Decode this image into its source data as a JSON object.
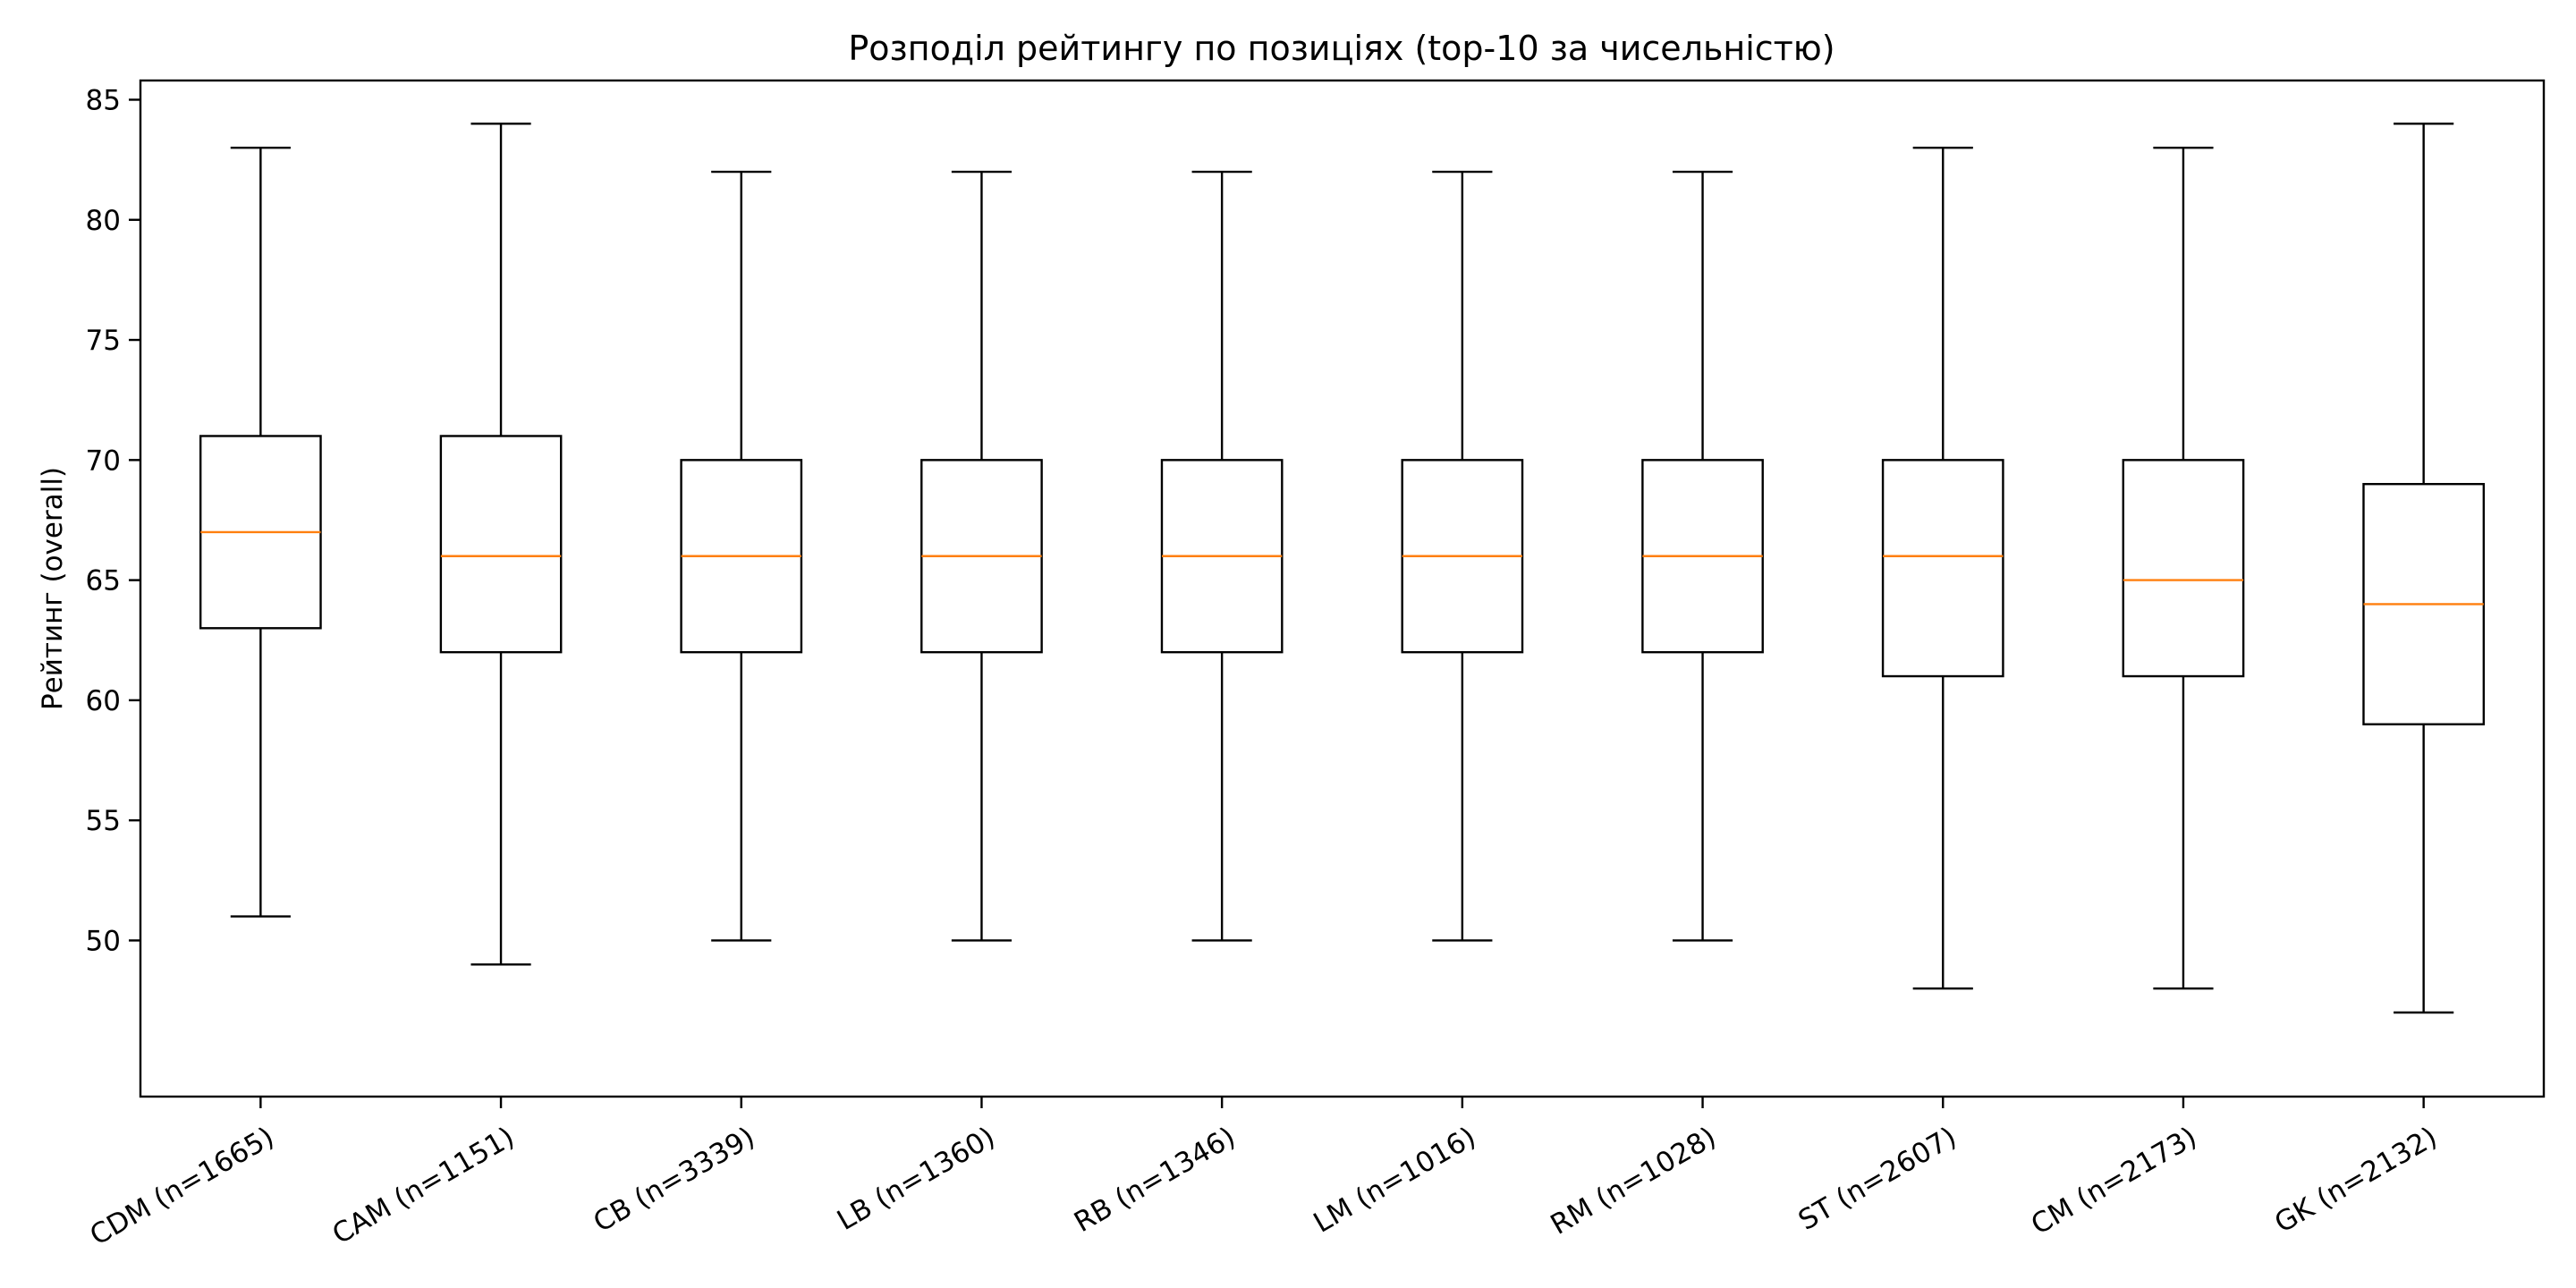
{
  "chart_data": {
    "type": "boxplot",
    "title": "Розподіл рейтингу по позиціях (top-10 за чисельністю)",
    "xlabel": "",
    "ylabel": "Рейтинг (overall)",
    "ylim": [
      43.5,
      85.8
    ],
    "yticks": [
      50,
      55,
      60,
      65,
      70,
      75,
      80,
      85
    ],
    "grid": false,
    "colors": {
      "box": "#000000",
      "median": "#ff7f0e",
      "background": "#ffffff"
    },
    "categories": [
      "CDM (n=1665)",
      "CAM (n=1151)",
      "CB (n=3339)",
      "LB (n=1360)",
      "RB (n=1346)",
      "LM (n=1016)",
      "RM (n=1028)",
      "ST (n=2607)",
      "CM (n=2173)",
      "GK (n=2132)"
    ],
    "boxes": [
      {
        "whisker_low": 51,
        "q1": 63,
        "median": 67,
        "q3": 71,
        "whisker_high": 83
      },
      {
        "whisker_low": 49,
        "q1": 62,
        "median": 66,
        "q3": 71,
        "whisker_high": 84
      },
      {
        "whisker_low": 50,
        "q1": 62,
        "median": 66,
        "q3": 70,
        "whisker_high": 82
      },
      {
        "whisker_low": 50,
        "q1": 62,
        "median": 66,
        "q3": 70,
        "whisker_high": 82
      },
      {
        "whisker_low": 50,
        "q1": 62,
        "median": 66,
        "q3": 70,
        "whisker_high": 82
      },
      {
        "whisker_low": 50,
        "q1": 62,
        "median": 66,
        "q3": 70,
        "whisker_high": 82
      },
      {
        "whisker_low": 50,
        "q1": 62,
        "median": 66,
        "q3": 70,
        "whisker_high": 82
      },
      {
        "whisker_low": 48,
        "q1": 61,
        "median": 66,
        "q3": 70,
        "whisker_high": 83
      },
      {
        "whisker_low": 48,
        "q1": 61,
        "median": 65,
        "q3": 70,
        "whisker_high": 83
      },
      {
        "whisker_low": 47,
        "q1": 59,
        "median": 64,
        "q3": 69,
        "whisker_high": 84
      }
    ]
  }
}
